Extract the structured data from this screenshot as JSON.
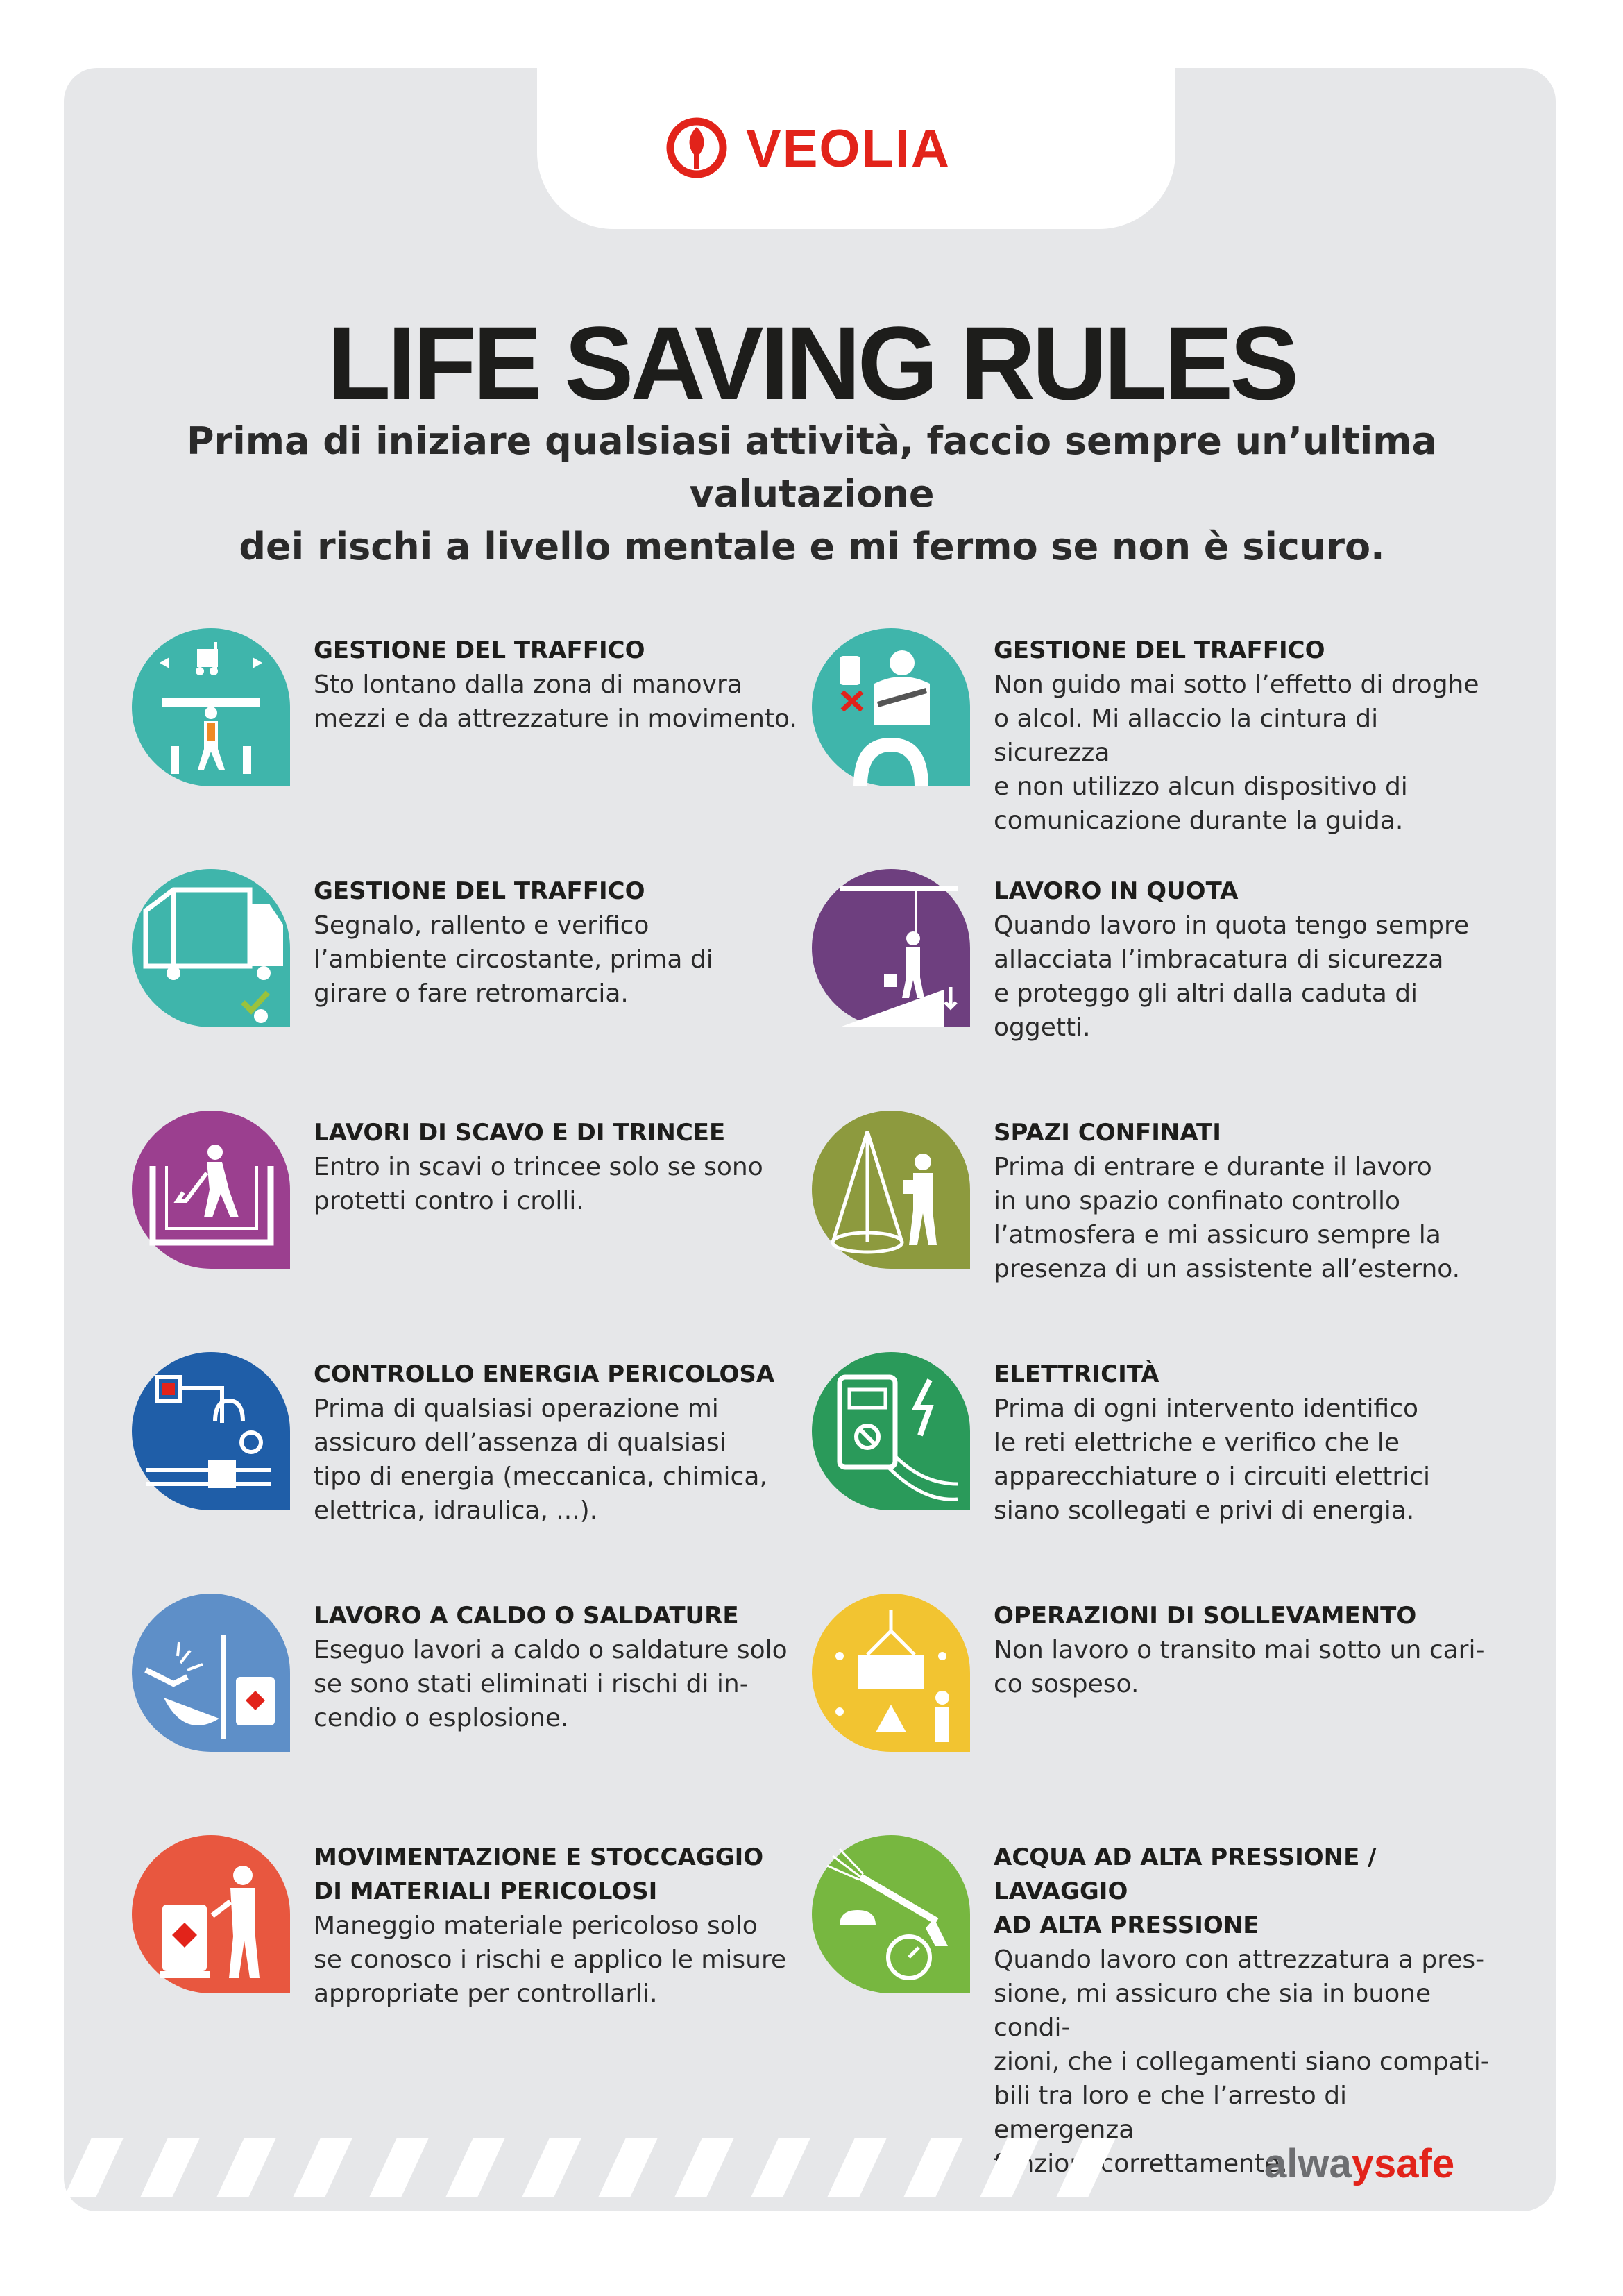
{
  "brand": {
    "name": "VEOLIA",
    "color": "#e2231a"
  },
  "title": "LIFE SAVING RULES",
  "subtitle_line1": "Prima di iniziare qualsiasi attività, faccio sempre un’ultima valutazione",
  "subtitle_line2": "dei rischi a livello mentale e mi fermo se non è sicuro.",
  "rules": [
    {
      "icon": "pedestrian-forklift-icon",
      "color": "#3fb5ab",
      "title": "GESTIONE DEL TRAFFICO",
      "lines": [
        "Sto lontano dalla zona di manovra",
        "mezzi e da attrezzature in movimento."
      ]
    },
    {
      "icon": "driver-seatbelt-icon",
      "color": "#3fb5ab",
      "title": "GESTIONE DEL TRAFFICO",
      "lines": [
        "Non guido mai sotto l’effetto di droghe",
        "o alcol. Mi allaccio la cintura di sicurezza",
        "e non utilizzo alcun dispositivo di",
        "comunicazione durante la guida."
      ]
    },
    {
      "icon": "truck-reversing-icon",
      "color": "#3fb5ab",
      "title": "GESTIONE DEL TRAFFICO",
      "lines": [
        "Segnalo, rallento e verifico",
        "l’ambiente circostante, prima di",
        "girare o fare retromarcia."
      ]
    },
    {
      "icon": "worker-harness-icon",
      "color": "#6e3f7f",
      "title": "LAVORO IN QUOTA",
      "lines": [
        "Quando lavoro in quota tengo sempre",
        "allacciata l’imbracatura di sicurezza",
        "e proteggo gli altri dalla caduta di",
        "oggetti."
      ]
    },
    {
      "icon": "excavation-worker-icon",
      "color": "#9b3f8f",
      "title": "LAVORI DI SCAVO E DI TRINCEE",
      "lines": [
        "Entro in scavi o trincee solo se sono",
        "protetti contro i crolli."
      ]
    },
    {
      "icon": "confined-space-tripod-icon",
      "color": "#8d9a3e",
      "title": "SPAZI CONFINATI",
      "lines": [
        "Prima di entrare e durante il lavoro",
        "in uno spazio confinato controllo",
        "l’atmosfera e mi assicuro sempre la",
        "presenza di un assistente all’esterno."
      ]
    },
    {
      "icon": "energy-lockout-icon",
      "color": "#1f5ea8",
      "title": "CONTROLLO ENERGIA PERICOLOSA",
      "lines": [
        "Prima di qualsiasi operazione mi",
        "assicuro dell’assenza di qualsiasi",
        "tipo di energia (meccanica, chimica,",
        "elettrica, idraulica, ...)."
      ]
    },
    {
      "icon": "voltage-tester-icon",
      "color": "#2a9a5a",
      "title": "ELETTRICITÀ",
      "lines": [
        "Prima di ogni intervento identifico",
        "le reti elettriche e verifico che le",
        "apparecchiature o i circuiti elettrici",
        "siano scollegati e privi di energia."
      ]
    },
    {
      "icon": "welding-sparks-icon",
      "color": "#5e8fc8",
      "title": "LAVORO A CALDO O SALDATURE",
      "lines": [
        "Eseguo lavori a caldo o saldature solo",
        "se sono stati eliminati i rischi di in-",
        "cendio o esplosione."
      ]
    },
    {
      "icon": "suspended-load-icon",
      "color": "#f2c431",
      "title": "OPERAZIONI DI SOLLEVAMENTO",
      "lines": [
        "Non lavoro o transito mai sotto un cari-",
        "co sospeso."
      ]
    },
    {
      "icon": "hazardous-drum-icon",
      "color": "#e8573f",
      "title": "MOVIMENTAZIONE E STOCCAGGIO DI MATERIALI PERICOLOSI",
      "title_lines": [
        "MOVIMENTAZIONE E STOCCAGGIO",
        "DI MATERIALI PERICOLOSI"
      ],
      "lines": [
        "Maneggio materiale pericoloso solo",
        "se conosco i rischi e applico le misure",
        "appropriate per controllarli."
      ]
    },
    {
      "icon": "pressure-washer-icon",
      "color": "#77b740",
      "title": "ACQUA AD ALTA PRESSIONE / LAVAGGIO AD ALTA PRESSIONE",
      "title_lines": [
        "ACQUA AD ALTA PRESSIONE / LAVAGGIO",
        "AD ALTA PRESSIONE"
      ],
      "lines": [
        "Quando lavoro con attrezzatura a pres-",
        "sione, mi assicuro che sia in buone condi-",
        "zioni, che i collegamenti siano compati-",
        "bili tra loro e che l’arresto di emergenza",
        "funzioni correttamente."
      ]
    }
  ],
  "footer": {
    "tagline_part1": "alwa",
    "tagline_check": "y",
    "tagline_part2": "safe"
  }
}
